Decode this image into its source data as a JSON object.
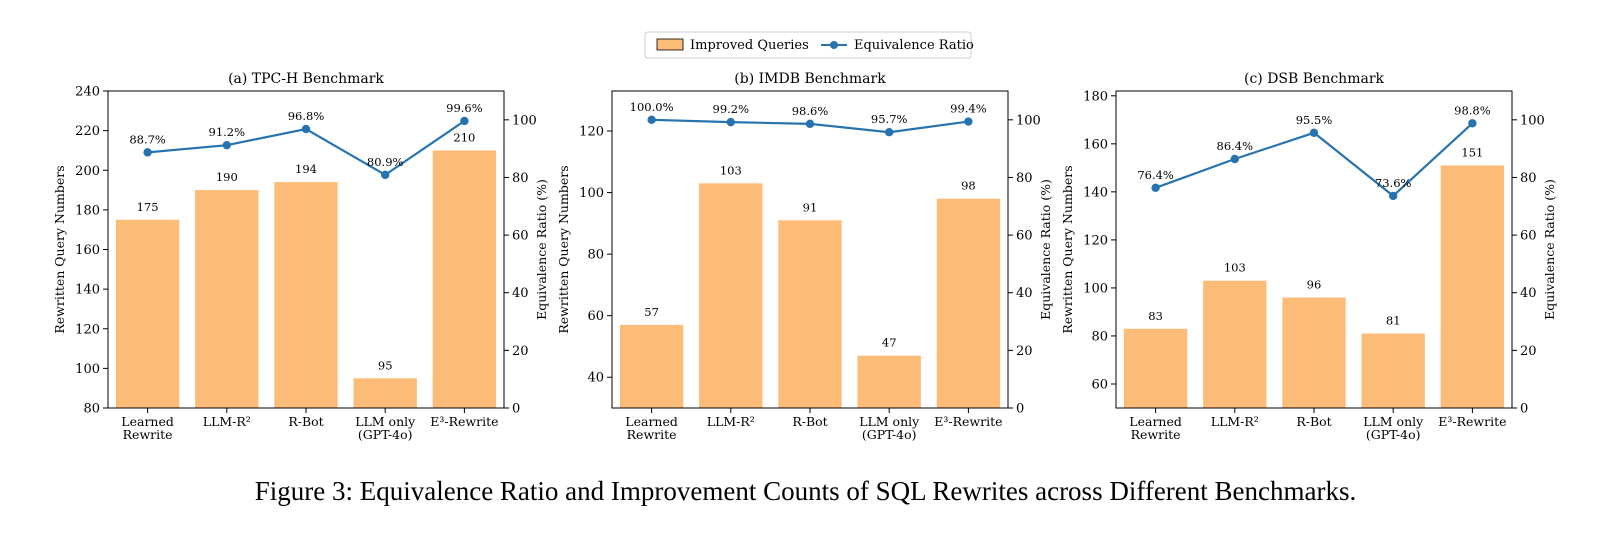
{
  "figure": {
    "caption": "Figure 3: Equivalence Ratio and Improvement Counts of SQL Rewrites across Different Benchmarks.",
    "legend": {
      "bar_label": "Improved Queries",
      "line_label": "Equivalence Ratio"
    },
    "colors": {
      "bar": "#FDBB78",
      "line": "#2673B0"
    }
  },
  "chart_data": [
    {
      "type": "bar",
      "title": "(a) TPC-H Benchmark",
      "categories": [
        "Learned\nRewrite",
        "LLM-R²",
        "R-Bot",
        "LLM only\n(GPT-4o)",
        "E³-Rewrite"
      ],
      "ylabel": "Rewritten Query Numbers",
      "y2label": "Equivalence Ratio (%)",
      "ylim": [
        80,
        240
      ],
      "yticks": [
        80,
        100,
        120,
        140,
        160,
        180,
        200,
        220,
        240
      ],
      "y2lim": [
        0,
        110
      ],
      "y2ticks": [
        0,
        20,
        40,
        60,
        80,
        100
      ],
      "series": [
        {
          "name": "Improved Queries",
          "kind": "bar",
          "values": [
            175,
            190,
            194,
            95,
            210
          ],
          "labels": [
            "175",
            "190",
            "194",
            "95",
            "210"
          ]
        },
        {
          "name": "Equivalence Ratio",
          "kind": "line",
          "axis": "right",
          "values": [
            88.7,
            91.2,
            96.8,
            80.9,
            99.6
          ],
          "labels": [
            "88.7%",
            "91.2%",
            "96.8%",
            "80.9%",
            "99.6%"
          ]
        }
      ]
    },
    {
      "type": "bar",
      "title": "(b) IMDB Benchmark",
      "categories": [
        "Learned\nRewrite",
        "LLM-R²",
        "R-Bot",
        "LLM only\n(GPT-4o)",
        "E³-Rewrite"
      ],
      "ylabel": "Rewritten Query Numbers",
      "y2label": "Equivalence Ratio (%)",
      "ylim": [
        30,
        133
      ],
      "yticks": [
        40,
        60,
        80,
        100,
        120
      ],
      "y2lim": [
        0,
        110
      ],
      "y2ticks": [
        0,
        20,
        40,
        60,
        80,
        100
      ],
      "series": [
        {
          "name": "Improved Queries",
          "kind": "bar",
          "values": [
            57,
            103,
            91,
            47,
            98
          ],
          "labels": [
            "57",
            "103",
            "91",
            "47",
            "98"
          ]
        },
        {
          "name": "Equivalence Ratio",
          "kind": "line",
          "axis": "right",
          "values": [
            100.0,
            99.2,
            98.6,
            95.7,
            99.4
          ],
          "labels": [
            "100.0%",
            "99.2%",
            "98.6%",
            "95.7%",
            "99.4%"
          ]
        }
      ]
    },
    {
      "type": "bar",
      "title": "(c) DSB Benchmark",
      "categories": [
        "Learned\nRewrite",
        "LLM-R²",
        "R-Bot",
        "LLM only\n(GPT-4o)",
        "E³-Rewrite"
      ],
      "ylabel": "Rewritten Query Numbers",
      "y2label": "Equivalence Ratio (%)",
      "ylim": [
        50,
        182
      ],
      "yticks": [
        60,
        80,
        100,
        120,
        140,
        160,
        180
      ],
      "y2lim": [
        0,
        110
      ],
      "y2ticks": [
        0,
        20,
        40,
        60,
        80,
        100
      ],
      "series": [
        {
          "name": "Improved Queries",
          "kind": "bar",
          "values": [
            83,
            103,
            96,
            81,
            151
          ],
          "labels": [
            "83",
            "103",
            "96",
            "81",
            "151"
          ]
        },
        {
          "name": "Equivalence Ratio",
          "kind": "line",
          "axis": "right",
          "values": [
            76.4,
            86.4,
            95.5,
            73.6,
            98.8
          ],
          "labels": [
            "76.4%",
            "86.4%",
            "95.5%",
            "73.6%",
            "98.8%"
          ]
        }
      ]
    }
  ]
}
